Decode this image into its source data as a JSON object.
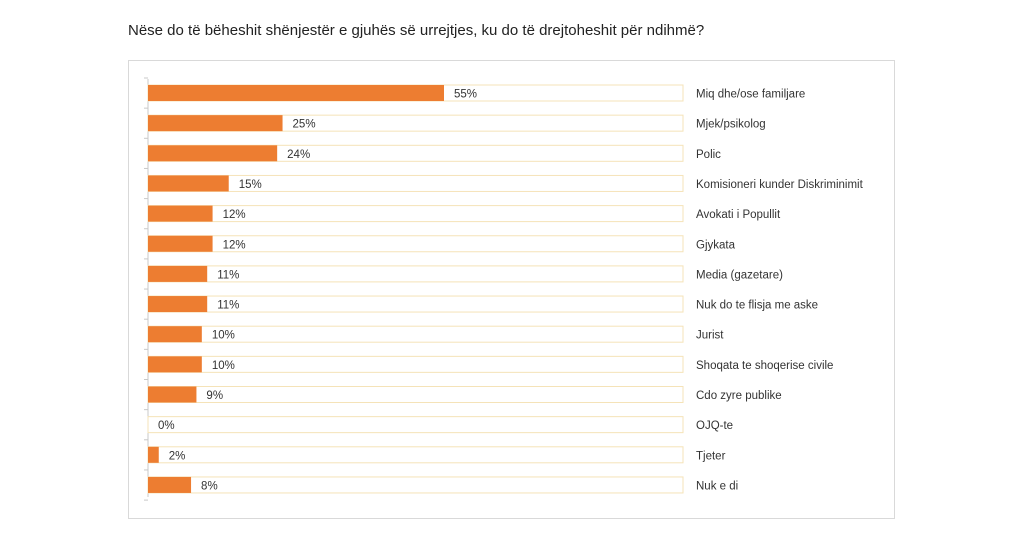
{
  "title": "Nëse do të bëheshit shënjestër e gjuhës së urrejtjes, ku do të drejtoheshit për ndihmë?",
  "colors": {
    "bar": "#ed7d31",
    "track_border": "#f5e3b8",
    "axis": "#c8c8c8",
    "text": "#333333"
  },
  "chart_data": {
    "type": "bar",
    "orientation": "horizontal",
    "categories": [
      "Miq dhe/ose familjare",
      "Mjek/psikolog",
      "Polic",
      "Komisioneri kunder Diskriminimit",
      "Avokati i Popullit",
      "Gjykata",
      "Media (gazetare)",
      "Nuk do te flisja me aske",
      "Jurist",
      "Shoqata te shoqerise civile",
      "Cdo zyre publike",
      "OJQ-te",
      "Tjeter",
      "Nuk e di"
    ],
    "values": [
      55,
      25,
      24,
      15,
      12,
      12,
      11,
      11,
      10,
      10,
      9,
      0,
      2,
      8
    ],
    "data_labels": [
      "55%",
      "25%",
      "24%",
      "15%",
      "12%",
      "12%",
      "11%",
      "11%",
      "10%",
      "10%",
      "9%",
      "0%",
      "2%",
      "8%"
    ],
    "unit": "%",
    "xlim": [
      0,
      100
    ],
    "legend": "none",
    "grid": false
  }
}
